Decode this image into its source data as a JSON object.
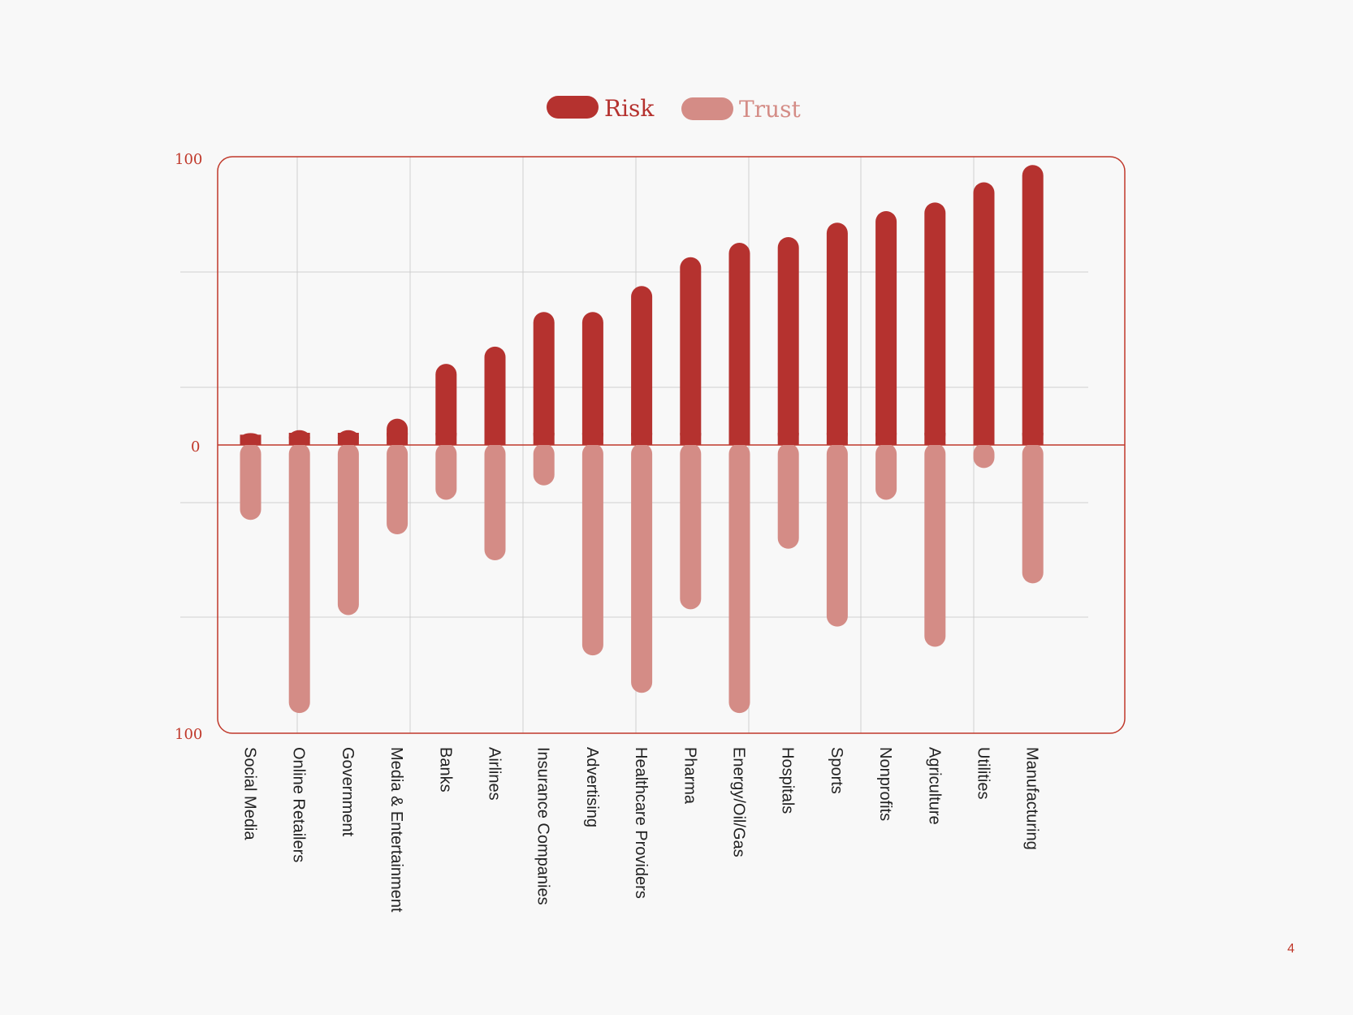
{
  "page": {
    "number": "4"
  },
  "colors": {
    "risk": "#b5322f",
    "trust": "#d48c86",
    "axis": "#c0392b",
    "grid": "#cfcfcf"
  },
  "chart_data": {
    "type": "bar",
    "legend": [
      {
        "name": "Risk",
        "position": "top-center"
      },
      {
        "name": "Trust",
        "position": "top-center"
      }
    ],
    "y_axis": {
      "top_label": "100",
      "zero_label": "0",
      "bottom_label": "100",
      "ylim": [
        -100,
        100
      ]
    },
    "categories": [
      "Social Media",
      "Online Retailers",
      "Government",
      "Media & Entertainment",
      "Banks",
      "Airlines",
      "Insurance Companies",
      "Advertising",
      "Healthcare Providers",
      "Pharma",
      "Energy/Oil/Gas",
      "Hospitals",
      "Sports",
      "Nonprofits",
      "Agriculture",
      "Utilities",
      "Manufacturing"
    ],
    "series": [
      {
        "name": "Risk",
        "values": [
          3,
          4,
          4,
          8,
          27,
          33,
          45,
          45,
          54,
          64,
          69,
          71,
          76,
          80,
          83,
          90,
          96
        ]
      },
      {
        "name": "Trust",
        "values": [
          -26,
          -93,
          -59,
          -31,
          -19,
          -40,
          -14,
          -73,
          -86,
          -57,
          -93,
          -36,
          -63,
          -19,
          -70,
          -8,
          -48
        ]
      }
    ]
  }
}
